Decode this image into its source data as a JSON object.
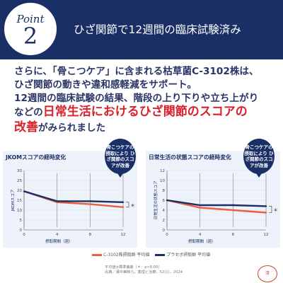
{
  "header": {
    "badge_word": "Point",
    "badge_number": "2",
    "title": "ひざ関節で12週間の臨床試験済み"
  },
  "body": {
    "line1": "さらに、「骨こつケア」に含まれる枯草菌C-3102株は、",
    "line2": "ひざ関節の動きや違和感軽減をサポート。",
    "line3": "12週間の臨床試験の結果、階段の上り下りや立ち上がり",
    "line4_prefix": "などの",
    "line4_highlight": "日常生活におけるひざ関節のスコアの",
    "line5_highlight": "改善",
    "line5_suffix": "がみられました"
  },
  "callouts": {
    "left": "骨こつケアの摂取により ひざ関節のスコアが改善",
    "right": "骨こつケアの摂取により ひざ関節のスコアが改善"
  },
  "chart_data": [
    {
      "type": "line",
      "title": "JKOMスコアの経時変化",
      "ylabel": "JKOMスコア",
      "xlabel": "摂取期間（週）",
      "x": [
        0,
        4,
        8,
        12
      ],
      "ylim": [
        0,
        30
      ],
      "y_ticks": [
        0,
        5,
        10,
        15,
        20,
        25,
        30
      ],
      "series": [
        {
          "name": "C-3102株摂取群 平均値",
          "color": "#e8603c",
          "values": [
            19.5,
            14.0,
            13.0,
            11.5
          ]
        },
        {
          "name": "プラセボ摂取群 平均値",
          "color": "#1a2f66",
          "values": [
            19.5,
            14.5,
            14.5,
            14.0
          ]
        }
      ],
      "annotation": "＊"
    },
    {
      "type": "line",
      "title": "日常生活の状態スコアの経時変化",
      "ylabel": "日常生活の状態スコア",
      "xlabel": "摂取期間（週）",
      "x": [
        0,
        4,
        8,
        12
      ],
      "ylim": [
        0,
        12
      ],
      "y_ticks": [
        0,
        2,
        4,
        6,
        8,
        10,
        12
      ],
      "series": [
        {
          "name": "C-3102株摂取群 平均値",
          "color": "#e8603c",
          "values": [
            6.0,
            4.5,
            4.0,
            3.5
          ]
        },
        {
          "name": "プラセボ摂取群 平均値",
          "color": "#1a2f66",
          "values": [
            6.0,
            5.0,
            5.0,
            4.8
          ]
        }
      ],
      "annotation": "＊"
    }
  ],
  "legend": {
    "test": "C-3102株摂取群 平均値",
    "placebo": "プラセボ摂取群 平均値",
    "test_color": "#e8603c",
    "placebo_color": "#1a2f66"
  },
  "footnote": {
    "line1": "平均値±標準偏差（＊：p<0.05）",
    "line2": "出典／溝中美映ら，薬理と治療，52(1)，2024"
  },
  "stamp": "済"
}
